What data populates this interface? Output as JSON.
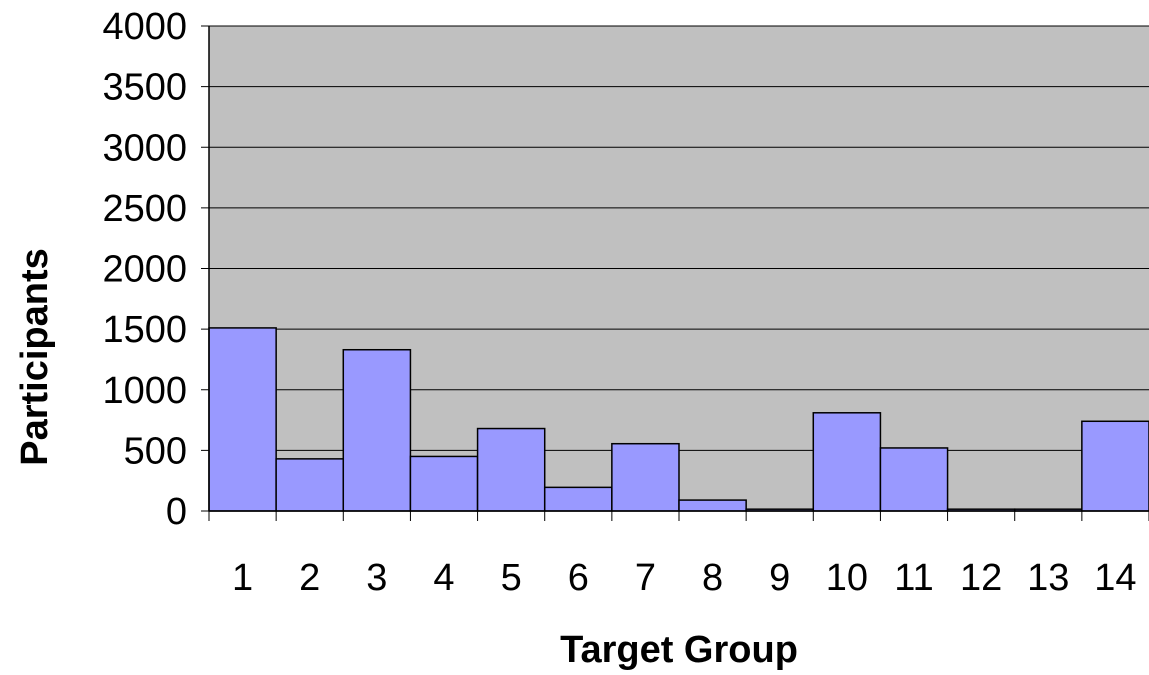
{
  "colors": {
    "plot_background": "#c0c0c0",
    "bar_fill": "#9999ff",
    "bar_stroke": "#000000",
    "gridline": "#000000",
    "page_background": "#ffffff"
  },
  "chart_data": {
    "type": "bar",
    "categories": [
      "1",
      "2",
      "3",
      "4",
      "5",
      "6",
      "7",
      "8",
      "9",
      "10",
      "11",
      "12",
      "13",
      "14"
    ],
    "values": [
      1510,
      430,
      1330,
      450,
      680,
      195,
      555,
      90,
      15,
      810,
      520,
      15,
      15,
      740
    ],
    "xlabel": "Target Group",
    "ylabel": "Participants",
    "ylim": [
      0,
      4000
    ],
    "yticks": [
      "0",
      "500",
      "1000",
      "1500",
      "2000",
      "2500",
      "3000",
      "3500",
      "4000"
    ],
    "grid": true,
    "legend": "none"
  }
}
